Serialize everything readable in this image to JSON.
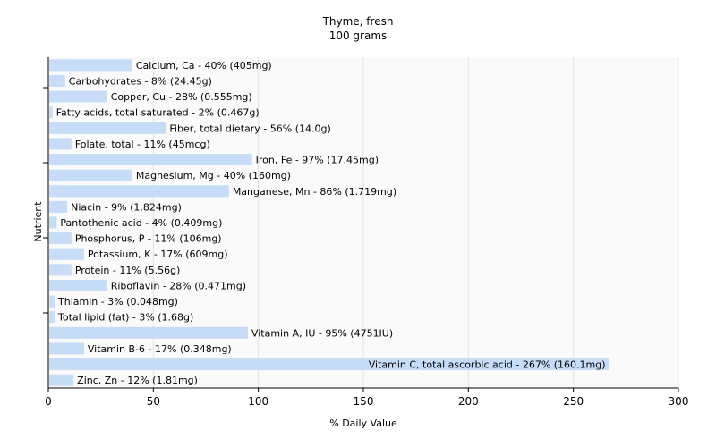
{
  "chart_data": {
    "type": "bar",
    "orientation": "horizontal",
    "title": "Thyme, fresh",
    "subtitle": "100 grams",
    "xlabel": "% Daily Value",
    "ylabel": "Nutrient",
    "xlim": [
      0,
      300
    ],
    "xticks": [
      0,
      50,
      100,
      150,
      200,
      250,
      300
    ],
    "grid": true,
    "legend": "none",
    "bar_color": "#c6dcf7",
    "categories": [
      "Calcium, Ca - 40% (405mg)",
      "Carbohydrates - 8% (24.45g)",
      "Copper, Cu - 28% (0.555mg)",
      "Fatty acids, total saturated - 2% (0.467g)",
      "Fiber, total dietary - 56% (14.0g)",
      "Folate, total - 11% (45mcg)",
      "Iron, Fe - 97% (17.45mg)",
      "Magnesium, Mg - 40% (160mg)",
      "Manganese, Mn - 86% (1.719mg)",
      "Niacin - 9% (1.824mg)",
      "Pantothenic acid - 4% (0.409mg)",
      "Phosphorus, P - 11% (106mg)",
      "Potassium, K - 17% (609mg)",
      "Protein - 11% (5.56g)",
      "Riboflavin - 28% (0.471mg)",
      "Thiamin - 3% (0.048mg)",
      "Total lipid (fat) - 3% (1.68g)",
      "Vitamin A, IU - 95% (4751IU)",
      "Vitamin B-6 - 17% (0.348mg)",
      "Vitamin C, total ascorbic acid - 267% (160.1mg)",
      "Zinc, Zn - 12% (1.81mg)"
    ],
    "values": [
      40,
      8,
      28,
      2,
      56,
      11,
      97,
      40,
      86,
      9,
      4,
      11,
      17,
      11,
      28,
      3,
      3,
      95,
      17,
      267,
      12
    ]
  }
}
